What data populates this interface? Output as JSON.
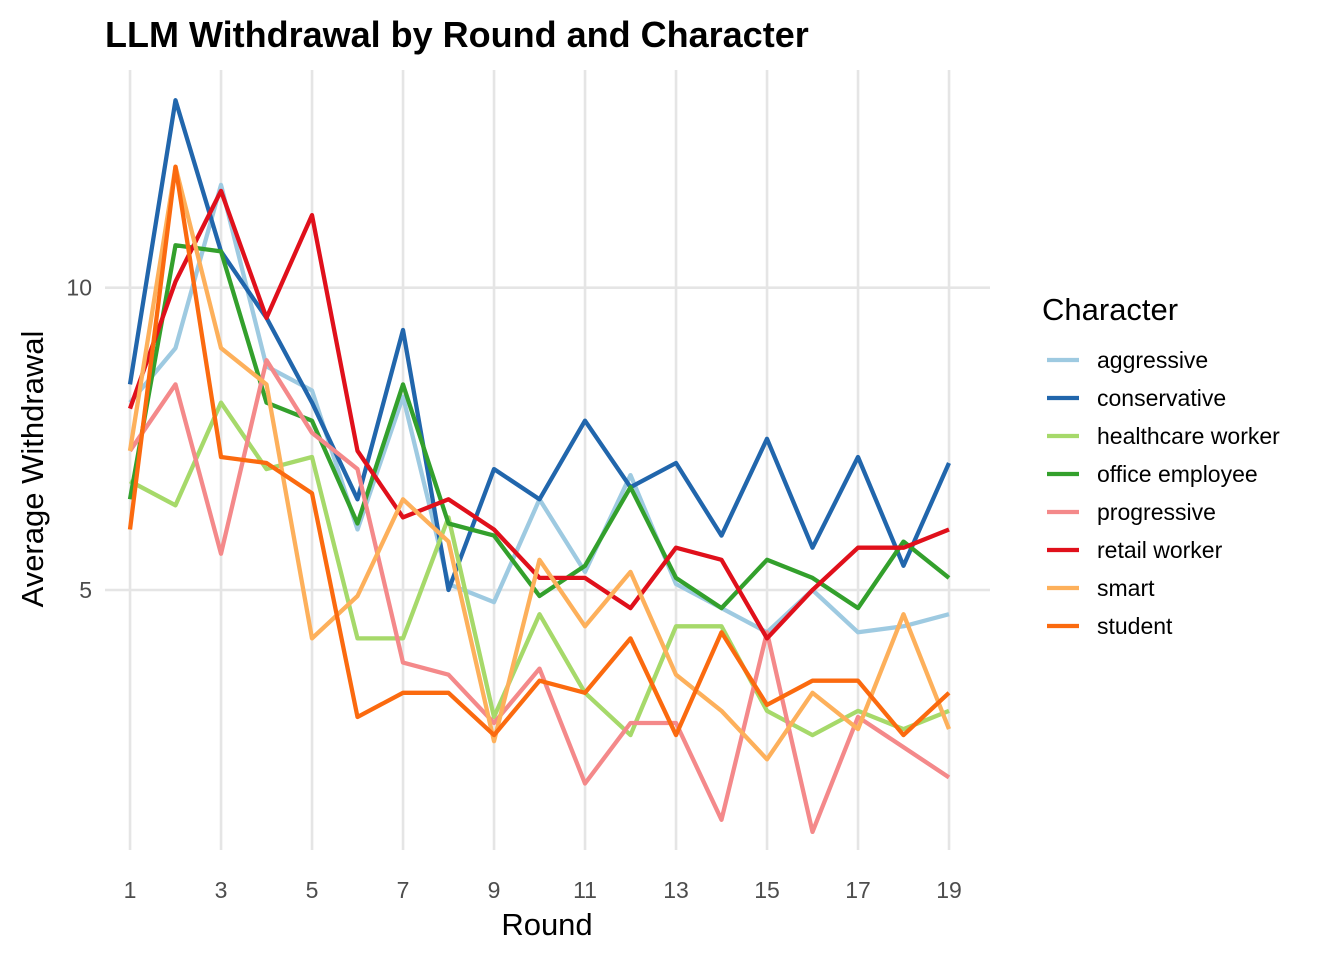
{
  "chart_data": {
    "type": "line",
    "title": "LLM Withdrawal by Round and Character",
    "xlabel": "Round",
    "ylabel": "Average Withdrawal",
    "xlim": [
      0.45,
      19.9
    ],
    "ylim": [
      0.7,
      13.6
    ],
    "x_ticks": [
      "1",
      "3",
      "5",
      "7",
      "9",
      "11",
      "13",
      "15",
      "17",
      "19"
    ],
    "y_ticks": [
      "5",
      "10"
    ],
    "grid": true,
    "legend_title": "Character",
    "legend_position": "right",
    "x": [
      1,
      2,
      3,
      4,
      5,
      6,
      7,
      8,
      9,
      10,
      11,
      12,
      13,
      14,
      15,
      16,
      17,
      18,
      19
    ],
    "series": [
      {
        "name": "aggressive",
        "color": "#9ecae1",
        "values": [
          8.1,
          9.0,
          11.7,
          8.7,
          8.3,
          6.0,
          8.2,
          5.1,
          4.8,
          6.5,
          5.3,
          6.9,
          5.1,
          4.7,
          4.3,
          5.0,
          4.3,
          4.4,
          4.6
        ]
      },
      {
        "name": "conservative",
        "color": "#2166ac",
        "values": [
          8.4,
          13.1,
          10.6,
          9.5,
          8.1,
          6.5,
          9.3,
          5.0,
          7.0,
          6.5,
          7.8,
          6.7,
          7.1,
          5.9,
          7.5,
          5.7,
          7.2,
          5.4,
          7.1
        ]
      },
      {
        "name": "healthcare worker",
        "color": "#a6d96a",
        "values": [
          6.8,
          6.4,
          8.1,
          7.0,
          7.2,
          4.2,
          4.2,
          6.2,
          2.9,
          4.6,
          3.3,
          2.6,
          4.4,
          4.4,
          3.0,
          2.6,
          3.0,
          2.7,
          3.0
        ]
      },
      {
        "name": "office employee",
        "color": "#33a02c",
        "values": [
          6.5,
          10.7,
          10.6,
          8.1,
          7.8,
          6.1,
          8.4,
          6.1,
          5.9,
          4.9,
          5.4,
          6.7,
          5.2,
          4.7,
          5.5,
          5.2,
          4.7,
          5.8,
          5.2
        ]
      },
      {
        "name": "progressive",
        "color": "#f4898a",
        "values": [
          7.3,
          8.4,
          5.6,
          8.8,
          7.6,
          7.0,
          3.8,
          3.6,
          2.8,
          3.7,
          1.8,
          2.8,
          2.8,
          1.2,
          4.3,
          1.0,
          2.9,
          2.4,
          1.9
        ]
      },
      {
        "name": "retail worker",
        "color": "#e0101b",
        "values": [
          8.0,
          10.1,
          11.6,
          9.5,
          11.2,
          7.3,
          6.2,
          6.5,
          6.0,
          5.2,
          5.2,
          4.7,
          5.7,
          5.5,
          4.2,
          5.0,
          5.7,
          5.7,
          6.0
        ]
      },
      {
        "name": "smart",
        "color": "#fdb05b",
        "values": [
          7.3,
          12.0,
          9.0,
          8.4,
          4.2,
          4.9,
          6.5,
          5.8,
          2.5,
          5.5,
          4.4,
          5.3,
          3.6,
          3.0,
          2.2,
          3.3,
          2.7,
          4.6,
          2.7
        ]
      },
      {
        "name": "student",
        "color": "#fb6a0f",
        "values": [
          6.0,
          12.0,
          7.2,
          7.1,
          6.6,
          2.9,
          3.3,
          3.3,
          2.6,
          3.5,
          3.3,
          4.2,
          2.6,
          4.3,
          3.1,
          3.5,
          3.5,
          2.6,
          3.3
        ]
      }
    ]
  }
}
